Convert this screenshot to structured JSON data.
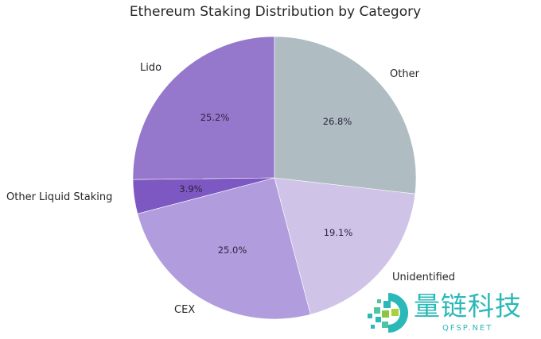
{
  "chart_data": {
    "type": "pie",
    "title": "Ethereum Staking Distribution by Category",
    "categories": [
      "Lido",
      "Other Liquid Staking",
      "CEX",
      "Unidentified",
      "Other"
    ],
    "values": [
      25.2,
      3.9,
      25.0,
      19.1,
      26.8
    ],
    "value_labels": [
      "25.2%",
      "3.9%",
      "25.0%",
      "19.1%",
      "26.8%"
    ],
    "colors": [
      "#9577cb",
      "#7e58c2",
      "#b19ddd",
      "#cfc4e8",
      "#afbcc1"
    ],
    "start_angle": 90,
    "direction": "counterclockwise",
    "legend": "none"
  },
  "watermark": {
    "text": "量链科技",
    "url": "QFSP.NET",
    "color": "#2bb8b8"
  }
}
